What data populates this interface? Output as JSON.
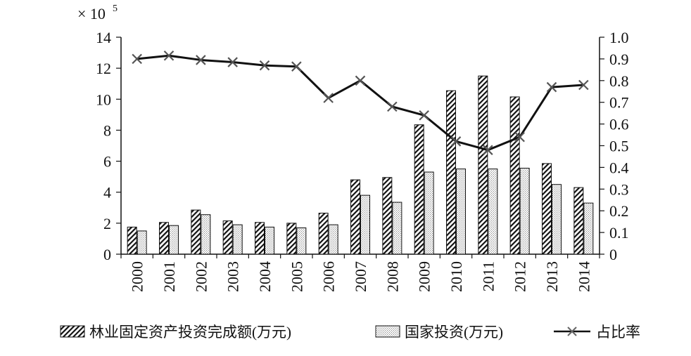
{
  "chart_data": {
    "type": "bar+line",
    "multiplier_label": "× 10",
    "multiplier_exponent": "5",
    "categories": [
      "2000",
      "2001",
      "2002",
      "2003",
      "2004",
      "2005",
      "2006",
      "2007",
      "2008",
      "2009",
      "2010",
      "2011",
      "2012",
      "2013",
      "2014"
    ],
    "series": [
      {
        "name": "林业固定资产投资完成额(万元)",
        "type": "bar",
        "axis": "left",
        "pattern": "diagonal-hatch",
        "values": [
          1.75,
          2.05,
          2.85,
          2.15,
          2.05,
          2.0,
          2.65,
          4.8,
          4.95,
          8.35,
          10.55,
          11.5,
          10.15,
          5.85,
          4.3
        ]
      },
      {
        "name": "国家投资(万元)",
        "type": "bar",
        "axis": "left",
        "pattern": "dotted",
        "values": [
          1.5,
          1.85,
          2.55,
          1.9,
          1.75,
          1.7,
          1.9,
          3.8,
          3.35,
          5.3,
          5.5,
          5.5,
          5.55,
          4.5,
          3.3
        ]
      },
      {
        "name": "占比率",
        "type": "line",
        "axis": "right",
        "marker": "x",
        "values": [
          0.9,
          0.915,
          0.895,
          0.885,
          0.87,
          0.865,
          0.72,
          0.8,
          0.68,
          0.64,
          0.52,
          0.48,
          0.54,
          0.77,
          0.78
        ]
      }
    ],
    "left_axis": {
      "ylim": [
        0,
        14
      ],
      "ticks": [
        "0",
        "2",
        "4",
        "6",
        "8",
        "10",
        "12",
        "14"
      ]
    },
    "right_axis": {
      "ylim": [
        0,
        1.0
      ],
      "ticks": [
        "0",
        "0.1",
        "0.2",
        "0.3",
        "0.4",
        "0.5",
        "0.6",
        "0.7",
        "0.8",
        "0.9",
        "1.0"
      ]
    },
    "grid": false,
    "legend_position": "bottom",
    "colors": {
      "bar": "#111111",
      "line": "#111111",
      "marker": "#555555",
      "background": "#ffffff"
    }
  }
}
